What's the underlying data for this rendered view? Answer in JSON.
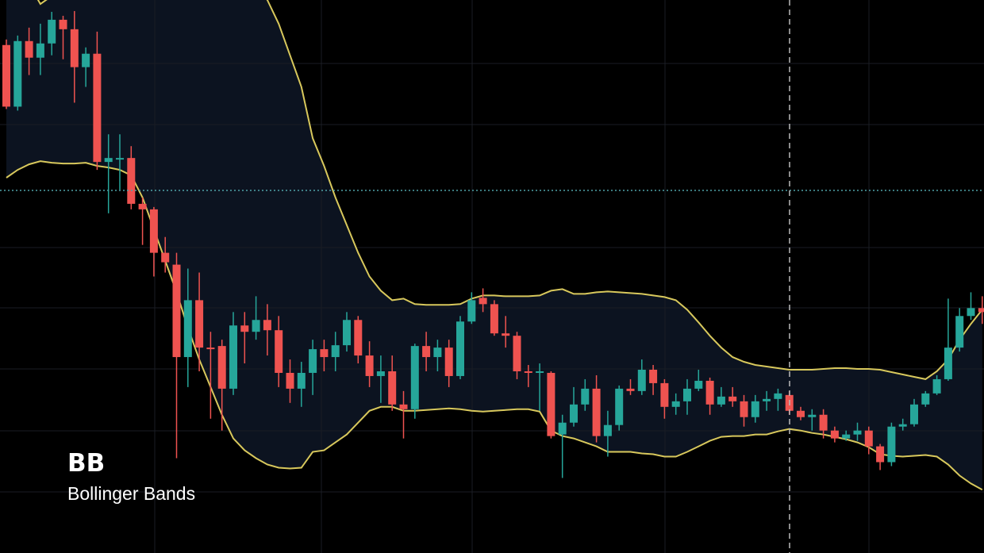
{
  "chart_data": {
    "type": "candlestick",
    "title": "BB",
    "subtitle": "Bollinger Bands",
    "ylim": [
      0,
      700
    ],
    "up_color": "#26a69a",
    "down_color": "#ef5350",
    "band_color": "#d8c85c",
    "band_fill": "#0c1320",
    "open": [
      643,
      565,
      648,
      627,
      645,
      675,
      663,
      615,
      632,
      495,
      498,
      500,
      442,
      435,
      380,
      365,
      248,
      320,
      260,
      262,
      208,
      288,
      280,
      295,
      282,
      228,
      208,
      228,
      258,
      248,
      263,
      295,
      250,
      224,
      230,
      188,
      182,
      262,
      248,
      260,
      224,
      293,
      323,
      315,
      278,
      275,
      230,
      228,
      228,
      150,
      165,
      188,
      208,
      148,
      162,
      208,
      205,
      232,
      215,
      185,
      192,
      208,
      218,
      188,
      198,
      192,
      172,
      192,
      195,
      200,
      180,
      172,
      175,
      155,
      145,
      150,
      155,
      135,
      115,
      160,
      163,
      188,
      202,
      220,
      260,
      300,
      310
    ],
    "high": [
      650,
      655,
      665,
      670,
      685,
      680,
      686,
      640,
      660,
      530,
      530,
      515,
      450,
      438,
      400,
      380,
      360,
      355,
      280,
      270,
      305,
      305,
      325,
      315,
      300,
      245,
      242,
      270,
      270,
      280,
      305,
      300,
      268,
      250,
      250,
      205,
      265,
      280,
      270,
      270,
      300,
      330,
      335,
      320,
      300,
      280,
      238,
      240,
      230,
      175,
      210,
      220,
      225,
      180,
      212,
      220,
      245,
      238,
      220,
      202,
      220,
      232,
      222,
      210,
      210,
      200,
      200,
      205,
      208,
      205,
      185,
      182,
      182,
      160,
      155,
      165,
      160,
      138,
      165,
      170,
      195,
      205,
      225,
      322,
      310,
      330,
      325
    ],
    "low": [
      562,
      560,
      605,
      605,
      630,
      625,
      570,
      590,
      485,
      430,
      460,
      435,
      390,
      350,
      355,
      120,
      210,
      230,
      170,
      155,
      200,
      240,
      270,
      250,
      210,
      190,
      185,
      200,
      230,
      230,
      255,
      240,
      210,
      190,
      180,
      145,
      170,
      230,
      230,
      210,
      220,
      290,
      305,
      275,
      260,
      220,
      210,
      180,
      145,
      95,
      160,
      180,
      140,
      122,
      155,
      200,
      200,
      200,
      170,
      175,
      175,
      205,
      175,
      185,
      185,
      160,
      165,
      180,
      180,
      175,
      168,
      155,
      145,
      140,
      142,
      142,
      125,
      105,
      110,
      155,
      160,
      185,
      200,
      218,
      255,
      295,
      290
    ],
    "close": [
      565,
      648,
      627,
      645,
      675,
      663,
      615,
      632,
      495,
      500,
      500,
      442,
      435,
      380,
      368,
      248,
      320,
      260,
      258,
      208,
      288,
      280,
      295,
      282,
      228,
      208,
      228,
      258,
      248,
      263,
      295,
      250,
      224,
      230,
      188,
      182,
      262,
      248,
      260,
      224,
      293,
      320,
      315,
      278,
      275,
      230,
      228,
      230,
      148,
      165,
      188,
      208,
      148,
      162,
      208,
      205,
      232,
      215,
      185,
      192,
      208,
      218,
      188,
      198,
      192,
      172,
      192,
      195,
      202,
      180,
      172,
      175,
      155,
      145,
      150,
      155,
      135,
      115,
      160,
      163,
      188,
      202,
      220,
      260,
      300,
      310,
      305
    ],
    "upper_band": {
      "values": [
        760,
        740,
        720,
        695,
        705,
        740,
        760,
        770,
        780,
        790,
        790,
        795,
        795,
        790,
        785,
        780,
        780,
        775,
        770,
        765,
        755,
        745,
        720,
        700,
        670,
        630,
        590,
        525,
        490,
        450,
        415,
        380,
        350,
        332,
        320,
        322,
        315,
        314,
        314,
        314,
        315,
        322,
        326,
        326,
        325,
        325,
        325,
        326,
        332,
        334,
        328,
        328,
        330,
        331,
        330,
        329,
        328,
        326,
        324,
        320,
        308,
        292,
        275,
        260,
        248,
        242,
        238,
        236,
        234,
        232,
        232,
        232,
        233,
        234,
        234,
        233,
        233,
        232,
        229,
        226,
        223,
        220,
        230,
        245,
        270,
        290,
        308
      ]
    },
    "lower_band": {
      "values": [
        475,
        485,
        492,
        496,
        494,
        493,
        493,
        494,
        490,
        488,
        485,
        478,
        450,
        410,
        370,
        330,
        285,
        245,
        210,
        175,
        145,
        130,
        120,
        112,
        108,
        107,
        108,
        128,
        130,
        140,
        150,
        165,
        180,
        185,
        185,
        180,
        180,
        181,
        182,
        183,
        182,
        180,
        179,
        180,
        181,
        182,
        182,
        179,
        155,
        148,
        145,
        140,
        135,
        128,
        128,
        128,
        126,
        125,
        122,
        122,
        128,
        135,
        142,
        147,
        148,
        148,
        150,
        150,
        154,
        157,
        155,
        152,
        150,
        147,
        144,
        140,
        134,
        125,
        123,
        122,
        123,
        124,
        122,
        112,
        98,
        88,
        80
      ]
    }
  }
}
